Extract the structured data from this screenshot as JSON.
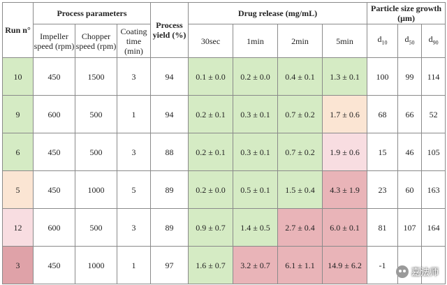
{
  "header": {
    "run": "Run n°",
    "process_parameters": "Process parameters",
    "process_yield": "Process yield (%)",
    "drug_release": "Drug release (mg/mL)",
    "particle_size": "Particle size growth (μm)",
    "impeller": "Impeller speed (rpm)",
    "chopper": "Chopper speed (rpm)",
    "coating": "Coating time (min)",
    "t30": "30sec",
    "t1": "1min",
    "t2": "2min",
    "t5": "5min",
    "d10": "10",
    "d50": "50",
    "d90": "90",
    "d_prefix": "d"
  },
  "rows": [
    {
      "run": "10",
      "impeller": "450",
      "chopper": "1500",
      "coating": "3",
      "yield": "94",
      "r30": "0.1 ± 0.0",
      "r1": "0.2 ± 0.0",
      "r2": "0.4 ± 0.1",
      "r5": "1.3 ± 0.1",
      "d10": "100",
      "d50": "99",
      "d90": "114"
    },
    {
      "run": "9",
      "impeller": "600",
      "chopper": "500",
      "coating": "1",
      "yield": "94",
      "r30": "0.2 ± 0.1",
      "r1": "0.3 ± 0.1",
      "r2": "0.7 ± 0.2",
      "r5": "1.7 ± 0.6",
      "d10": "68",
      "d50": "66",
      "d90": "52"
    },
    {
      "run": "6",
      "impeller": "450",
      "chopper": "500",
      "coating": "3",
      "yield": "88",
      "r30": "0.2 ± 0.1",
      "r1": "0.3 ± 0.1",
      "r2": "0.7 ± 0.2",
      "r5": "1.9 ± 0.6",
      "d10": "15",
      "d50": "46",
      "d90": "105"
    },
    {
      "run": "5",
      "impeller": "450",
      "chopper": "1000",
      "coating": "5",
      "yield": "89",
      "r30": "0.2 ± 0.0",
      "r1": "0.5 ± 0.1",
      "r2": "1.5 ± 0.4",
      "r5": "4.3 ± 1.9",
      "d10": "23",
      "d50": "60",
      "d90": "163"
    },
    {
      "run": "12",
      "impeller": "600",
      "chopper": "500",
      "coating": "3",
      "yield": "89",
      "r30": "0.9 ± 0.7",
      "r1": "1.4 ± 0.5",
      "r2": "2.7 ± 0.4",
      "r5": "6.0 ± 0.1",
      "d10": "81",
      "d50": "107",
      "d90": "164"
    },
    {
      "run": "3",
      "impeller": "450",
      "chopper": "1000",
      "coating": "1",
      "yield": "97",
      "r30": "1.6 ± 0.7",
      "r1": "3.2 ± 0.7",
      "r2": "6.1 ± 1.1",
      "r5": "14.9 ± 6.2",
      "d10": "-1",
      "d50": "",
      "d90": ""
    }
  ],
  "watermark": {
    "text": "嘉法师",
    "icon": "wechat-icon"
  },
  "colors": {
    "green": "#d5ebc4",
    "orange": "#fbe5d3",
    "pink": "#f8dde1",
    "red": "#e9b4b8"
  }
}
